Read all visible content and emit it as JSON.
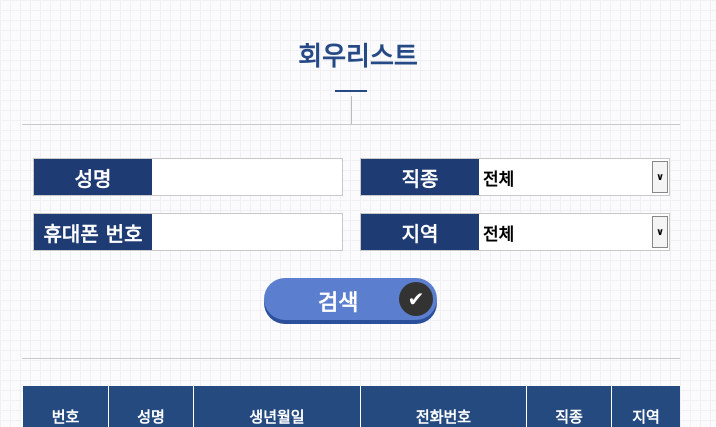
{
  "title": "회우리스트",
  "form": {
    "name_label": "성명",
    "phone_label": "휴대폰 번호",
    "job_label": "직종",
    "job_value": "전체",
    "region_label": "지역",
    "region_value": "전체"
  },
  "search_button": "검색",
  "table": {
    "headers": [
      "번호",
      "성명",
      "생년월일",
      "전화번호",
      "직종",
      "지역"
    ]
  }
}
